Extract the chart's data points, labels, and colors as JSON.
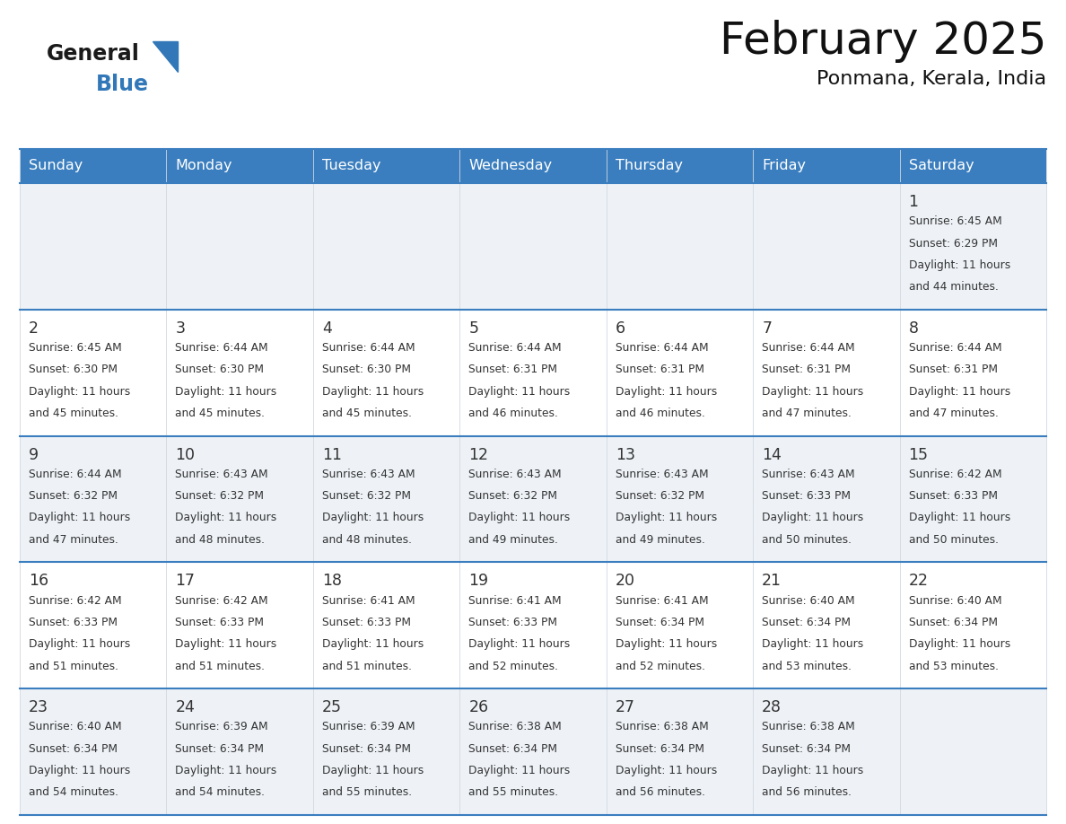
{
  "title": "February 2025",
  "subtitle": "Ponmana, Kerala, India",
  "header_color": "#3a7ebf",
  "header_text_color": "#ffffff",
  "row_bg_colors": [
    "#eef2f7",
    "#ffffff",
    "#eef2f7",
    "#ffffff",
    "#eef2f7"
  ],
  "border_color": "#3a7ebf",
  "text_color": "#333333",
  "days_of_week": [
    "Sunday",
    "Monday",
    "Tuesday",
    "Wednesday",
    "Thursday",
    "Friday",
    "Saturday"
  ],
  "weeks": [
    [
      {
        "day": null,
        "sunrise": null,
        "sunset": null,
        "daylight": null
      },
      {
        "day": null,
        "sunrise": null,
        "sunset": null,
        "daylight": null
      },
      {
        "day": null,
        "sunrise": null,
        "sunset": null,
        "daylight": null
      },
      {
        "day": null,
        "sunrise": null,
        "sunset": null,
        "daylight": null
      },
      {
        "day": null,
        "sunrise": null,
        "sunset": null,
        "daylight": null
      },
      {
        "day": null,
        "sunrise": null,
        "sunset": null,
        "daylight": null
      },
      {
        "day": 1,
        "sunrise": "6:45 AM",
        "sunset": "6:29 PM",
        "daylight": "11 hours and 44 minutes."
      }
    ],
    [
      {
        "day": 2,
        "sunrise": "6:45 AM",
        "sunset": "6:30 PM",
        "daylight": "11 hours and 45 minutes."
      },
      {
        "day": 3,
        "sunrise": "6:44 AM",
        "sunset": "6:30 PM",
        "daylight": "11 hours and 45 minutes."
      },
      {
        "day": 4,
        "sunrise": "6:44 AM",
        "sunset": "6:30 PM",
        "daylight": "11 hours and 45 minutes."
      },
      {
        "day": 5,
        "sunrise": "6:44 AM",
        "sunset": "6:31 PM",
        "daylight": "11 hours and 46 minutes."
      },
      {
        "day": 6,
        "sunrise": "6:44 AM",
        "sunset": "6:31 PM",
        "daylight": "11 hours and 46 minutes."
      },
      {
        "day": 7,
        "sunrise": "6:44 AM",
        "sunset": "6:31 PM",
        "daylight": "11 hours and 47 minutes."
      },
      {
        "day": 8,
        "sunrise": "6:44 AM",
        "sunset": "6:31 PM",
        "daylight": "11 hours and 47 minutes."
      }
    ],
    [
      {
        "day": 9,
        "sunrise": "6:44 AM",
        "sunset": "6:32 PM",
        "daylight": "11 hours and 47 minutes."
      },
      {
        "day": 10,
        "sunrise": "6:43 AM",
        "sunset": "6:32 PM",
        "daylight": "11 hours and 48 minutes."
      },
      {
        "day": 11,
        "sunrise": "6:43 AM",
        "sunset": "6:32 PM",
        "daylight": "11 hours and 48 minutes."
      },
      {
        "day": 12,
        "sunrise": "6:43 AM",
        "sunset": "6:32 PM",
        "daylight": "11 hours and 49 minutes."
      },
      {
        "day": 13,
        "sunrise": "6:43 AM",
        "sunset": "6:32 PM",
        "daylight": "11 hours and 49 minutes."
      },
      {
        "day": 14,
        "sunrise": "6:43 AM",
        "sunset": "6:33 PM",
        "daylight": "11 hours and 50 minutes."
      },
      {
        "day": 15,
        "sunrise": "6:42 AM",
        "sunset": "6:33 PM",
        "daylight": "11 hours and 50 minutes."
      }
    ],
    [
      {
        "day": 16,
        "sunrise": "6:42 AM",
        "sunset": "6:33 PM",
        "daylight": "11 hours and 51 minutes."
      },
      {
        "day": 17,
        "sunrise": "6:42 AM",
        "sunset": "6:33 PM",
        "daylight": "11 hours and 51 minutes."
      },
      {
        "day": 18,
        "sunrise": "6:41 AM",
        "sunset": "6:33 PM",
        "daylight": "11 hours and 51 minutes."
      },
      {
        "day": 19,
        "sunrise": "6:41 AM",
        "sunset": "6:33 PM",
        "daylight": "11 hours and 52 minutes."
      },
      {
        "day": 20,
        "sunrise": "6:41 AM",
        "sunset": "6:34 PM",
        "daylight": "11 hours and 52 minutes."
      },
      {
        "day": 21,
        "sunrise": "6:40 AM",
        "sunset": "6:34 PM",
        "daylight": "11 hours and 53 minutes."
      },
      {
        "day": 22,
        "sunrise": "6:40 AM",
        "sunset": "6:34 PM",
        "daylight": "11 hours and 53 minutes."
      }
    ],
    [
      {
        "day": 23,
        "sunrise": "6:40 AM",
        "sunset": "6:34 PM",
        "daylight": "11 hours and 54 minutes."
      },
      {
        "day": 24,
        "sunrise": "6:39 AM",
        "sunset": "6:34 PM",
        "daylight": "11 hours and 54 minutes."
      },
      {
        "day": 25,
        "sunrise": "6:39 AM",
        "sunset": "6:34 PM",
        "daylight": "11 hours and 55 minutes."
      },
      {
        "day": 26,
        "sunrise": "6:38 AM",
        "sunset": "6:34 PM",
        "daylight": "11 hours and 55 minutes."
      },
      {
        "day": 27,
        "sunrise": "6:38 AM",
        "sunset": "6:34 PM",
        "daylight": "11 hours and 56 minutes."
      },
      {
        "day": 28,
        "sunrise": "6:38 AM",
        "sunset": "6:34 PM",
        "daylight": "11 hours and 56 minutes."
      },
      {
        "day": null,
        "sunrise": null,
        "sunset": null,
        "daylight": null
      }
    ]
  ],
  "logo_general_color": "#1a1a1a",
  "logo_blue_color": "#3278b8",
  "logo_triangle_color": "#3278b8"
}
